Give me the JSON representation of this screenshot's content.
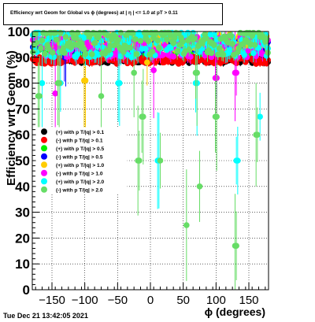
{
  "chart_data": {
    "type": "scatter",
    "title": "Efficiency wrt Geom for Global vs ϕ (degrees) at | η | <= 1.0 at pT > 0.11",
    "xlabel": "ϕ (degrees)",
    "ylabel": "Efficiency wrt Geom (%)",
    "xlim": [
      -180,
      180
    ],
    "ylim": [
      0,
      100
    ],
    "xticks": [
      -150,
      -100,
      -50,
      0,
      50,
      100,
      150
    ],
    "yticks": [
      0,
      10,
      20,
      30,
      40,
      50,
      60,
      70,
      80,
      90,
      100
    ],
    "grid": true,
    "legend_placement": "middle-left",
    "series": [
      {
        "name": "(+) with p T/|q| > 0.1",
        "color": "#000000",
        "marker": "circle",
        "level": 89,
        "spread": 1.2,
        "dips": []
      },
      {
        "name": "(-) with p T/|q| > 0.1",
        "color": "#ff0000",
        "marker": "circle",
        "level": 89,
        "spread": 1.5,
        "dips": []
      },
      {
        "name": "(+) with p T/|q| > 0.5",
        "color": "#00ee00",
        "marker": "circle",
        "level": 94,
        "spread": 2.5,
        "dips": []
      },
      {
        "name": "(-) with p T/|q| > 0.5",
        "color": "#0000ff",
        "marker": "circle",
        "level": 95,
        "spread": 2.5,
        "dips": [
          [
            -130,
            90
          ],
          [
            100,
            92
          ]
        ]
      },
      {
        "name": "(+) with p T/|q| > 1.0",
        "color": "#ffcc00",
        "marker": "circle",
        "level": 96,
        "spread": 3,
        "dips": [
          [
            -100,
            81
          ],
          [
            -5,
            88
          ]
        ]
      },
      {
        "name": "(-) with p T/|q| > 1.0",
        "color": "#ff00ff",
        "marker": "circle",
        "level": 94,
        "spread": 4,
        "dips": [
          [
            -145,
            76
          ],
          [
            5,
            85
          ],
          [
            100,
            82
          ],
          [
            130,
            84
          ]
        ]
      },
      {
        "name": "(+) with p T/|q| > 2.0",
        "color": "#00ffff",
        "marker": "circle",
        "level": 95,
        "spread": 5,
        "dips": [
          [
            -165,
            80
          ],
          [
            -137,
            80
          ],
          [
            -48,
            80
          ],
          [
            12,
            50
          ],
          [
            70,
            80
          ],
          [
            132,
            50
          ],
          [
            167,
            67
          ]
        ]
      },
      {
        "name": "(-) with p T/|q| > 2.0",
        "color": "#66dd66",
        "marker": "circle",
        "level": 96,
        "spread": 5,
        "dips": [
          [
            -170,
            75
          ],
          [
            -140,
            80
          ],
          [
            -75,
            75
          ],
          [
            -25,
            84
          ],
          [
            -12,
            67
          ],
          [
            -18,
            50
          ],
          [
            15,
            50
          ],
          [
            55,
            25
          ],
          [
            75,
            40
          ],
          [
            100,
            67
          ],
          [
            130,
            17
          ],
          [
            162,
            60
          ],
          [
            70,
            84
          ]
        ]
      }
    ]
  },
  "timestamp": "Tue Dec 21 13:42:05 2021"
}
